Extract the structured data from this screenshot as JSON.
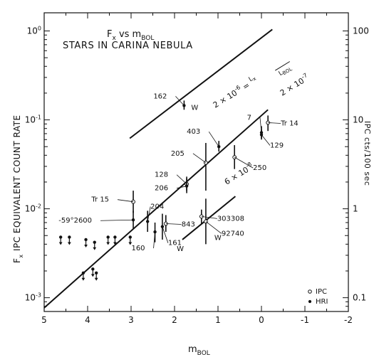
{
  "chart_data": {
    "type": "scatter",
    "title": "F<sub>x</sub> vs m<sub>BOL</sub>",
    "subtitle": "STARS IN CARINA NEBULA",
    "xlabel": "m<sub>BOL</sub>",
    "ylabel": "F<sub>x</sub> IPC EQUIVALENT COUNT RATE",
    "ylabel_right": "IPC cts/100 sec",
    "xlim": [
      5,
      -2
    ],
    "ylim": [
      0.0007,
      1.6
    ],
    "y_scale": "log",
    "x_ticks": [
      "5",
      "4",
      "3",
      "2",
      "1",
      "0",
      "-1",
      "-2"
    ],
    "y_ticks_left": [
      "10^0",
      "10^-1",
      "10^-2",
      "10^-3"
    ],
    "y_ticks_right": [
      "100",
      "10",
      "1",
      "0.1"
    ],
    "lines": [
      {
        "label": "2×10^-6 = L_x / L_BOL",
        "x": [
          3.03,
          -0.25
        ],
        "y": [
          0.062,
          1.04
        ]
      },
      {
        "label": "2×10^-7",
        "x": [
          5.0,
          -0.15
        ],
        "y": [
          0.00077,
          0.13
        ]
      },
      {
        "label": "6×10^-8",
        "x": [
          1.82,
          0.6
        ],
        "y": [
          0.0045,
          0.0138
        ]
      }
    ],
    "legend": {
      "position": "bottom-right",
      "entries": [
        {
          "marker": "open-circle",
          "label": "IPC"
        },
        {
          "marker": "filled-dot",
          "label": "HRI"
        }
      ]
    },
    "points": [
      {
        "label": "162",
        "x": 1.78,
        "y": 0.145,
        "marker": "dot",
        "err": [
          0.13,
          0.165
        ]
      },
      {
        "label": "W",
        "x": 1.78,
        "y": 0.145,
        "marker": "dot"
      },
      {
        "label": "7",
        "x": 0.0,
        "y": 0.072,
        "marker": "dot",
        "err": [
          0.062,
          0.085
        ]
      },
      {
        "label": "Tr 14",
        "x": -0.15,
        "y": 0.093,
        "marker": "circle",
        "err": [
          0.075,
          0.112
        ]
      },
      {
        "label": "129",
        "x": 0.0,
        "y": 0.068,
        "marker": "dot",
        "err": [
          0.06,
          0.078
        ]
      },
      {
        "label": "403",
        "x": 0.98,
        "y": 0.05,
        "marker": "dot",
        "err": [
          0.044,
          0.058
        ]
      },
      {
        "label": "205",
        "x": 1.28,
        "y": 0.033,
        "marker": "circle",
        "err": [
          0.016,
          0.055
        ]
      },
      {
        "label": "250",
        "x": 0.62,
        "y": 0.038,
        "marker": "circle",
        "err": [
          0.028,
          0.052
        ]
      },
      {
        "label": "128",
        "x": 1.72,
        "y": 0.019,
        "marker": "circle",
        "err": [
          0.016,
          0.023
        ]
      },
      {
        "label": "206",
        "x": 1.72,
        "y": 0.018,
        "marker": "dot",
        "err": [
          0.015,
          0.022
        ]
      },
      {
        "label": "Tr 15",
        "x": 2.95,
        "y": 0.012,
        "marker": "circle",
        "err": [
          0.009,
          0.016
        ]
      },
      {
        "label": "204",
        "x": 2.62,
        "y": 0.0072,
        "marker": "dot",
        "err": [
          0.0055,
          0.0095
        ]
      },
      {
        "label": "-59°2600",
        "x": 2.95,
        "y": 0.0075,
        "marker": "dot",
        "err": [
          0.006,
          0.0095
        ]
      },
      {
        "label": "843",
        "x": 2.2,
        "y": 0.0068,
        "marker": "circle",
        "err": [
          0.0055,
          0.0085
        ]
      },
      {
        "label": "160",
        "x": 2.45,
        "y": 0.0055,
        "marker": "dot",
        "err": [
          0.0042,
          0.007
        ]
      },
      {
        "label": "161",
        "x": 2.28,
        "y": 0.0063,
        "marker": "dot",
        "err": [
          0.0045,
          0.0088
        ]
      },
      {
        "label": "W",
        "x": 1.85,
        "y": 0.005,
        "marker": "dot"
      },
      {
        "label": "303308",
        "x": 1.38,
        "y": 0.0082,
        "marker": "circle",
        "err": [
          0.0068,
          0.0098
        ]
      },
      {
        "label": "92740",
        "x": 1.28,
        "y": 0.0072,
        "marker": "circle",
        "err": [
          0.004,
          0.013
        ]
      },
      {
        "label": "W",
        "x": 1.28,
        "y": 0.0072,
        "marker": "circle"
      }
    ],
    "upper_limits": [
      {
        "x": 4.62,
        "y": 0.0048
      },
      {
        "x": 4.42,
        "y": 0.0048
      },
      {
        "x": 4.04,
        "y": 0.0045
      },
      {
        "x": 3.84,
        "y": 0.0042
      },
      {
        "x": 3.53,
        "y": 0.0048
      },
      {
        "x": 3.37,
        "y": 0.0048
      },
      {
        "x": 3.02,
        "y": 0.0048
      },
      {
        "x": 4.1,
        "y": 0.0019
      },
      {
        "x": 3.88,
        "y": 0.0021
      },
      {
        "x": 3.8,
        "y": 0.0019
      }
    ]
  }
}
